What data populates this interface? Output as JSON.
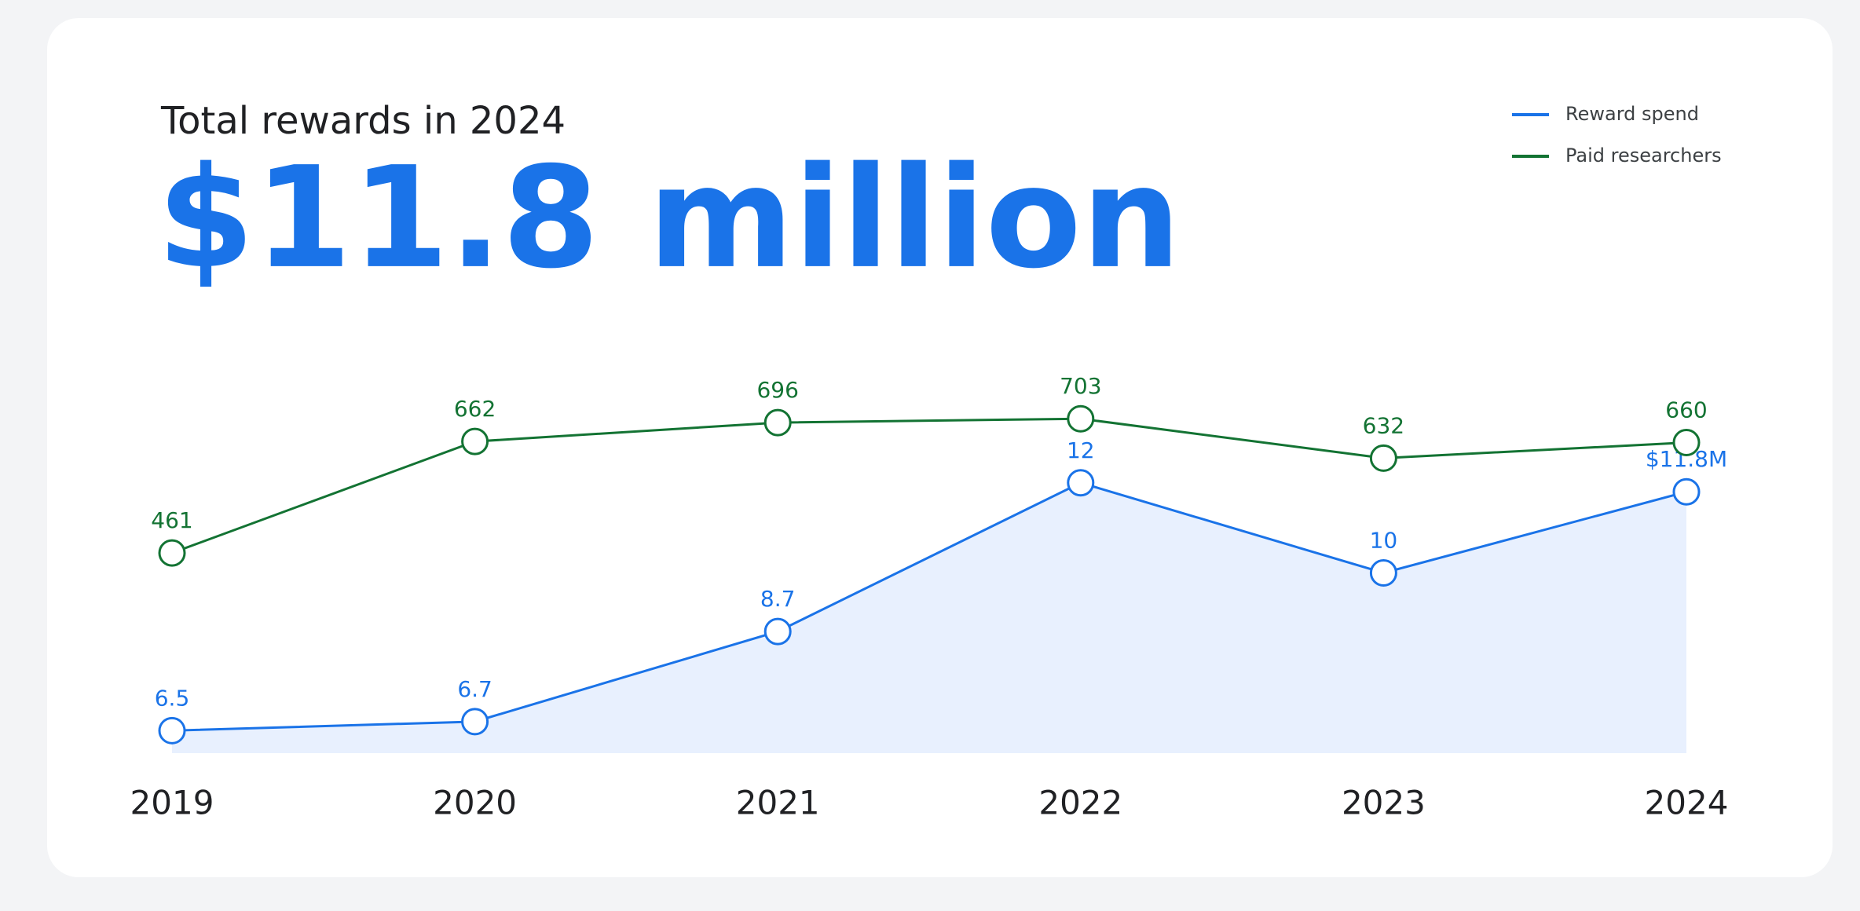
{
  "chart_data": {
    "type": "line",
    "title": "Total rewards in 2024",
    "headline": "$11.8 million",
    "categories": [
      "2019",
      "2020",
      "2021",
      "2022",
      "2023",
      "2024"
    ],
    "series": [
      {
        "name": "Reward spend",
        "color": "#1a73e8",
        "values": [
          6.5,
          6.7,
          8.7,
          12,
          10,
          11.8
        ],
        "value_labels": [
          "6.5",
          "6.7",
          "8.7",
          "12",
          "10",
          "$11.8M"
        ],
        "area": true
      },
      {
        "name": "Paid researchers",
        "color": "#137333",
        "axis": "y2",
        "values": [
          461,
          662,
          696,
          703,
          632,
          660
        ]
      }
    ],
    "ylim": [
      6,
      14
    ],
    "y2lim": [
      100,
      750
    ],
    "legend": "top-right"
  }
}
